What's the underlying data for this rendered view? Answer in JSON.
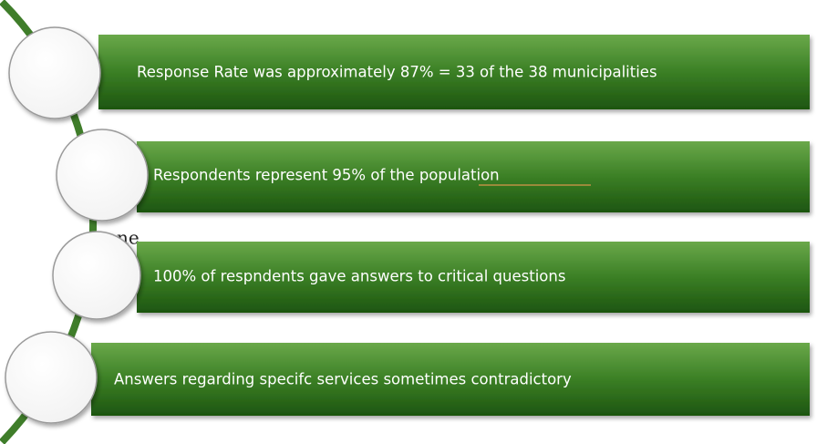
{
  "fragments": [
    "ne",
    "ne"
  ],
  "items": [
    {
      "label": "Response Rate  was approximately 87% = 33 of the 38 municipalities"
    },
    {
      "label": "Respondents represent 95% of the population"
    },
    {
      "label": "100% of respndents gave answers to critical questions"
    },
    {
      "label": "Answers regarding specifc services sometimes contradictory"
    }
  ]
}
